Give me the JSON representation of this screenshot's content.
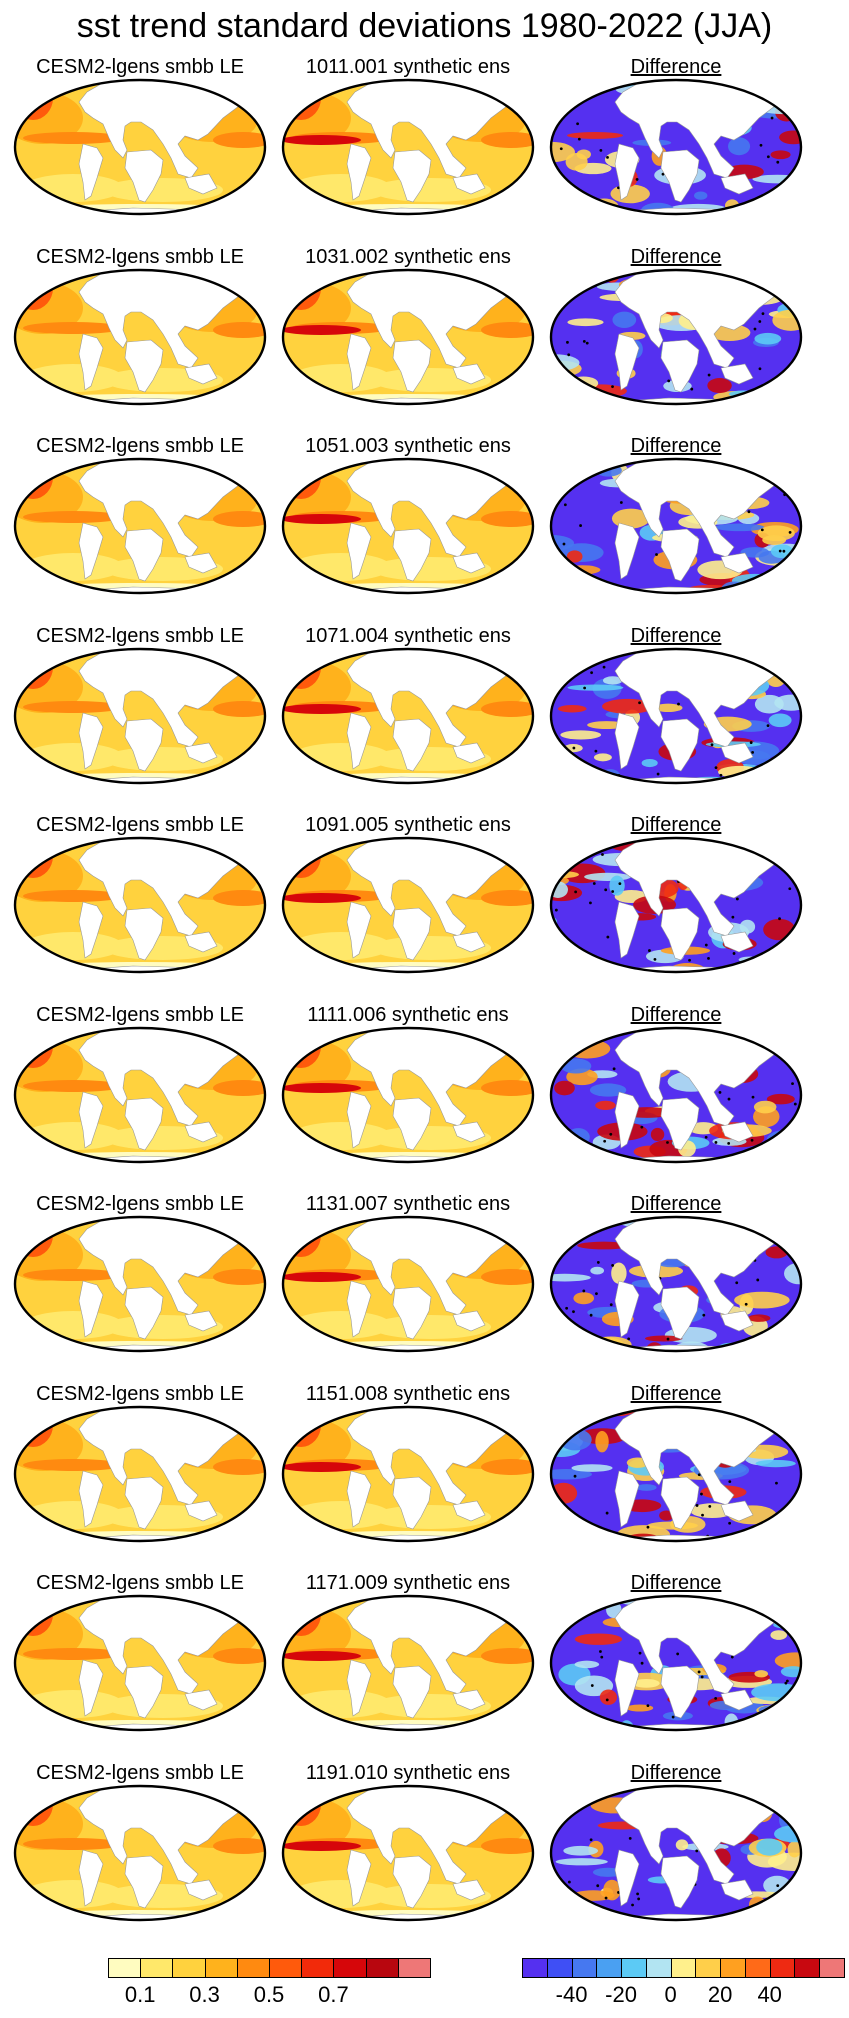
{
  "title": "sst trend standard deviations 1980-2022 (JJA)",
  "columns": {
    "left_label": "CESM2-lgens smbb LE",
    "right_label": "Difference"
  },
  "rows": [
    {
      "middle_label": "1011.001 synthetic ens"
    },
    {
      "middle_label": "1031.002 synthetic ens"
    },
    {
      "middle_label": "1051.003 synthetic ens"
    },
    {
      "middle_label": "1071.004 synthetic ens"
    },
    {
      "middle_label": "1091.005 synthetic ens"
    },
    {
      "middle_label": "1111.006 synthetic ens"
    },
    {
      "middle_label": "1131.007 synthetic ens"
    },
    {
      "middle_label": "1151.008 synthetic ens"
    },
    {
      "middle_label": "1171.009 synthetic ens"
    },
    {
      "middle_label": "1191.010 synthetic ens"
    }
  ],
  "colorbars": {
    "std": {
      "colors": [
        "#fffcc0",
        "#ffe86a",
        "#ffd23e",
        "#ffb21c",
        "#ff8a10",
        "#ff5a0c",
        "#f22a0a",
        "#d6060a",
        "#b8060f",
        "#ee7777"
      ],
      "ticks": [
        {
          "label": "0.1",
          "after_index": 0
        },
        {
          "label": "0.3",
          "after_index": 2
        },
        {
          "label": "0.5",
          "after_index": 4
        },
        {
          "label": "0.7",
          "after_index": 6
        }
      ]
    },
    "diff": {
      "colors": [
        "#5530f0",
        "#3f4ff5",
        "#4678f0",
        "#4aa0f2",
        "#5ccaf5",
        "#b2e4f2",
        "#fff08c",
        "#ffcf4a",
        "#ffa020",
        "#ff6a18",
        "#ee2a12",
        "#c80810",
        "#ee7777"
      ],
      "ticks": [
        {
          "label": "-40",
          "after_index": 1
        },
        {
          "label": "-20",
          "after_index": 3
        },
        {
          "label": "0",
          "after_index": 5
        },
        {
          "label": "20",
          "after_index": 7
        },
        {
          "label": "40",
          "after_index": 9
        }
      ]
    }
  }
}
